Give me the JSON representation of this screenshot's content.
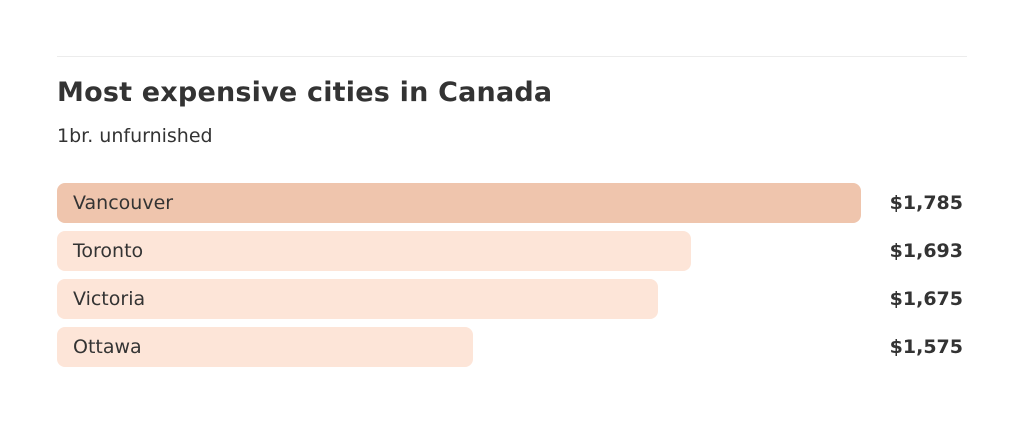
{
  "colors": {
    "highlight_bar": "#efc5ad",
    "bar": "#fde5d8",
    "text": "#333333"
  },
  "chart_data": {
    "type": "bar",
    "orientation": "horizontal",
    "title": "Most expensive cities in Canada",
    "subtitle": "1br. unfurnished",
    "categories": [
      "Vancouver",
      "Toronto",
      "Victoria",
      "Ottawa"
    ],
    "values": [
      1785,
      1693,
      1675,
      1575
    ],
    "value_labels": [
      "$1,785",
      "$1,693",
      "$1,675",
      "$1,575"
    ],
    "axis_min": 1350,
    "axis_max": 1790,
    "grid": false,
    "legend": "none"
  }
}
